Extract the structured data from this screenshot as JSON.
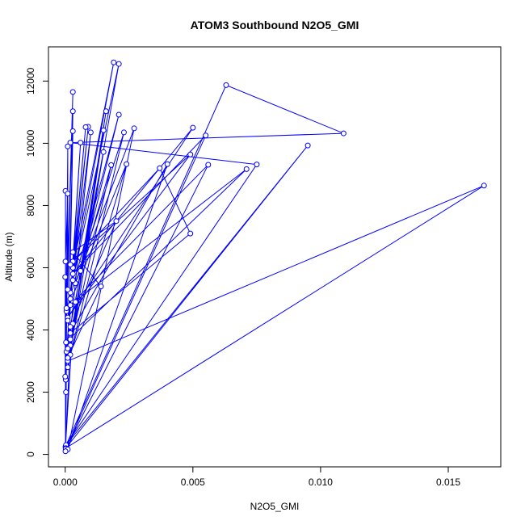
{
  "chart_data": {
    "type": "line",
    "title": "ATOM3 Southbound N2O5_GMI",
    "x_label": "N2O5_GMI",
    "y_label": "Altitude (m)",
    "x": [
      2e-05,
      5e-05,
      0.0003,
      0.0019,
      0.0002,
      0.0021,
      0.0003,
      1e-05,
      0.0063,
      0.0109,
      0.0002,
      0.0075,
      3e-05,
      0.0095,
      2e-05,
      0.0164,
      0.0001,
      3e-05,
      0.0071,
      0.0002,
      0.0056,
      2e-05,
      0.0055,
      0.0003,
      0.005,
      0.0001,
      0.0049,
      0.0003,
      0.0037,
      0.0049,
      0.0002,
      0.004,
      0.0001,
      0.0027,
      0.0004,
      0.0023,
      0.0002,
      0.0024,
      5e-05,
      0.0021,
      0.0006,
      0.0018,
      0.0002,
      0.0016,
      0.0004,
      0.0015,
      0.0001,
      0.0015,
      0.0002,
      0.002,
      0.0003,
      0.0014,
      0.0001,
      0.001,
      0.0003,
      0.0009,
      0.0001,
      0.0008,
      0.0002,
      0.0006,
      0.0001,
      0.0003,
      0.0002,
      0.0003,
      5e-05,
      0.0003,
      0.0001,
      0.0001,
      2e-05,
      1e-05,
      3e-05,
      0.0001,
      1e-05,
      1e-05,
      0.0002,
      0,
      0
    ],
    "series": [
      {
        "color": "#0000ff",
        "values": [
          150,
          3300,
          6000,
          12600,
          5200,
          12550,
          4200,
          250,
          11870,
          10320,
          10020,
          9320,
          300,
          9930,
          200,
          8640,
          3000,
          3600,
          9170,
          4800,
          9310,
          180,
          10250,
          5800,
          10500,
          4400,
          9640,
          6200,
          9200,
          7100,
          3900,
          9330,
          160,
          10480,
          5500,
          10350,
          3200,
          9330,
          4600,
          10920,
          5900,
          9300,
          3500,
          11030,
          4900,
          10420,
          2800,
          9720,
          4100,
          7500,
          6500,
          5400,
          3100,
          10350,
          5600,
          10530,
          4300,
          10520,
          5000,
          10020,
          3400,
          10390,
          6100,
          11030,
          4700,
          11650,
          5300,
          9900,
          2400,
          8470,
          2000,
          8380,
          6200,
          100,
          3700,
          5700,
          2500
        ]
      }
    ],
    "marker": "open-circle",
    "xlim": [
      -0.000656,
      0.017056
    ],
    "ylim": [
      -400,
      13100
    ],
    "xticks": [
      {
        "value": 0,
        "label": "0.000"
      },
      {
        "value": 0.005,
        "label": "0.005"
      },
      {
        "value": 0.01,
        "label": "0.010"
      },
      {
        "value": 0.015,
        "label": "0.015"
      }
    ],
    "yticks": [
      0,
      2000,
      4000,
      6000,
      8000,
      10000,
      12000
    ]
  }
}
